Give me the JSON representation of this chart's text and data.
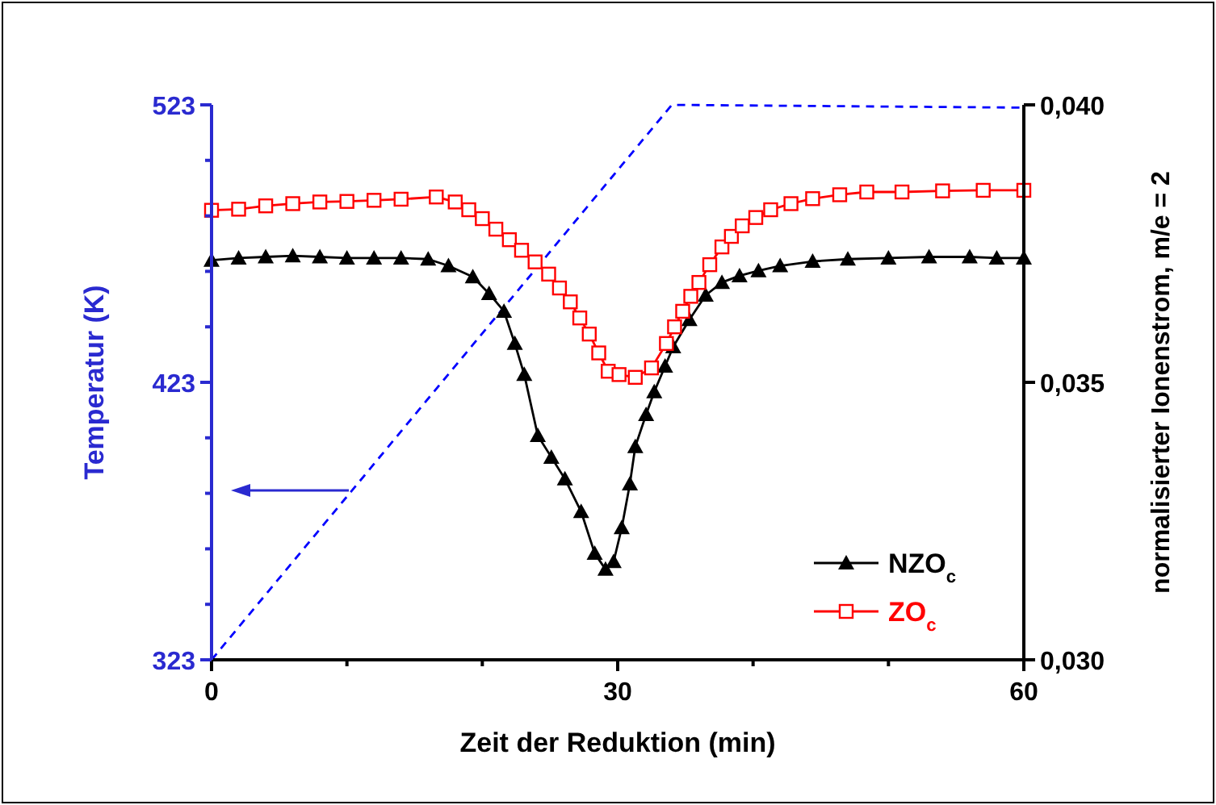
{
  "chart_data": {
    "type": "line",
    "xlabel": "Zeit der Reduktion (min)",
    "ylabel": "Temperatur (K)",
    "y2label": "normalisierter Ionenstrom, m/e = 2",
    "xlim": [
      0,
      60
    ],
    "xticks": [
      0,
      {
        "value": 10,
        "label": null
      },
      {
        "value": 20,
        "label": null
      },
      30,
      {
        "value": 40,
        "label": null
      },
      {
        "value": 50,
        "label": null
      },
      60
    ],
    "ylim": [
      323,
      523
    ],
    "yticks": [
      323,
      {
        "value": 343,
        "label": null
      },
      {
        "value": 363,
        "label": null
      },
      {
        "value": 383,
        "label": null
      },
      {
        "value": 403,
        "label": null
      },
      423,
      {
        "value": 443,
        "label": null
      },
      {
        "value": 463,
        "label": null
      },
      {
        "value": 483,
        "label": null
      },
      {
        "value": 503,
        "label": null
      },
      523
    ],
    "y2lim": [
      0.03,
      0.04
    ],
    "y2ticks": [
      {
        "value": 0.03,
        "label": "0,030"
      },
      {
        "value": 0.035,
        "label": "0,035"
      },
      {
        "value": 0.04,
        "label": "0,040"
      }
    ],
    "grid": false,
    "legend": "bottom right",
    "series": [
      {
        "color": "#0000ff",
        "axis": "y",
        "marker": "none",
        "line_style": "dashed",
        "x": [
          0,
          34,
          60
        ],
        "values": [
          323,
          523,
          522
        ]
      },
      {
        "name": "NZO$_{c}$",
        "color": "#000000",
        "axis": "y2",
        "marker": "triangle",
        "line_style": "solid",
        "x": [
          0,
          2,
          4,
          6,
          8,
          10,
          12,
          14,
          16,
          17.5,
          19.3,
          20.5,
          21.6,
          22.4,
          23.1,
          24.1,
          25.1,
          26.1,
          27.3,
          28.3,
          29.1,
          29.7,
          30.3,
          30.9,
          31.3,
          32.1,
          32.7,
          33.5,
          34.1,
          35.3,
          36.5,
          37.7,
          39,
          40.4,
          42,
          44.4,
          47,
          50,
          53,
          56,
          58,
          60
        ],
        "values": [
          0.0372,
          0.03724,
          0.03726,
          0.03728,
          0.03726,
          0.03724,
          0.03724,
          0.03724,
          0.03722,
          0.0371,
          0.0369,
          0.0366,
          0.03628,
          0.0357,
          0.03514,
          0.03404,
          0.03365,
          0.03326,
          0.03267,
          0.03192,
          0.03163,
          0.03177,
          0.03238,
          0.03317,
          0.03384,
          0.03442,
          0.03483,
          0.03529,
          0.03564,
          0.03613,
          0.03657,
          0.0368,
          0.03692,
          0.03701,
          0.0371,
          0.03718,
          0.03722,
          0.03724,
          0.03726,
          0.03726,
          0.03724,
          0.03724
        ]
      },
      {
        "name": "ZO$_{c}$",
        "color": "#ff0000",
        "axis": "y2",
        "marker": "square",
        "line_style": "solid",
        "x": [
          0,
          2,
          4,
          6,
          8,
          10,
          12,
          14,
          16.6,
          18,
          19,
          20,
          21,
          22,
          22.9,
          23.9,
          24.9,
          25.7,
          26.5,
          27.2,
          27.9,
          28.6,
          29.3,
          30.1,
          31.3,
          32.5,
          33.6,
          34.2,
          34.8,
          35.4,
          36,
          36.8,
          37.7,
          38.4,
          39.2,
          40.2,
          41.3,
          42.8,
          44.4,
          46.4,
          48.4,
          51,
          54,
          57,
          60
        ],
        "values": [
          0.0381,
          0.03812,
          0.03818,
          0.03822,
          0.03825,
          0.03826,
          0.03828,
          0.0383,
          0.03834,
          0.03825,
          0.03811,
          0.03795,
          0.03776,
          0.03757,
          0.03738,
          0.03717,
          0.03695,
          0.0367,
          0.03645,
          0.03616,
          0.03587,
          0.03553,
          0.0352,
          0.03514,
          0.03509,
          0.03526,
          0.0357,
          0.036,
          0.03628,
          0.03655,
          0.0368,
          0.03712,
          0.03744,
          0.03763,
          0.03782,
          0.03797,
          0.03811,
          0.03822,
          0.03831,
          0.03838,
          0.03843,
          0.03843,
          0.03845,
          0.03846,
          0.03846
        ]
      }
    ]
  }
}
